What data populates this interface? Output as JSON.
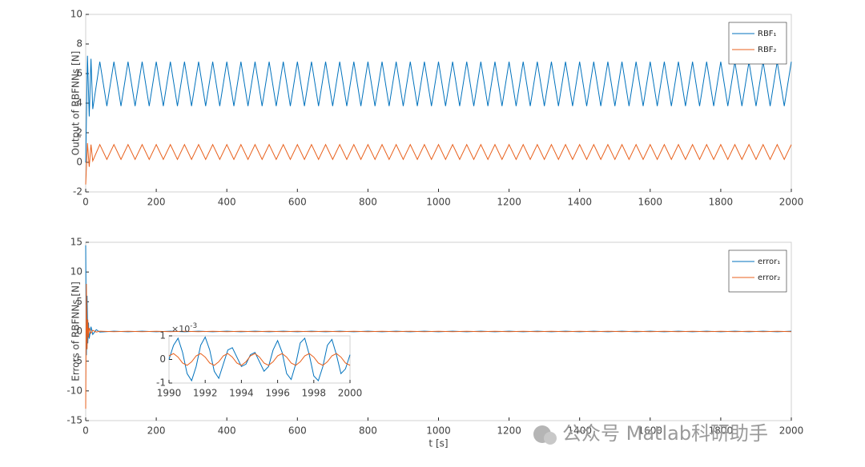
{
  "chart_data": [
    {
      "type": "line",
      "ylabel": "Output of RBFNNs [N]",
      "xlim": [
        0,
        2000
      ],
      "xticks": [
        0,
        200,
        400,
        600,
        800,
        1000,
        1200,
        1400,
        1600,
        1800,
        2000
      ],
      "ylim": [
        -2,
        10
      ],
      "yticks": [
        -2,
        0,
        2,
        4,
        6,
        8,
        10
      ],
      "grid": false,
      "legend": "upper right",
      "x": [
        0,
        5,
        10,
        15,
        20,
        40,
        60,
        80,
        100,
        120,
        140,
        160,
        180,
        200,
        220,
        240,
        260,
        280,
        300,
        320,
        340,
        360,
        380,
        400,
        420,
        440,
        460,
        480,
        500,
        520,
        540,
        560,
        580,
        600,
        620,
        640,
        660,
        680,
        700,
        720,
        740,
        760,
        780,
        800,
        820,
        840,
        860,
        880,
        900,
        920,
        940,
        960,
        980,
        1000,
        1020,
        1040,
        1060,
        1080,
        1100,
        1120,
        1140,
        1160,
        1180,
        1200,
        1220,
        1240,
        1260,
        1280,
        1300,
        1320,
        1340,
        1360,
        1380,
        1400,
        1420,
        1440,
        1460,
        1480,
        1500,
        1520,
        1540,
        1560,
        1580,
        1600,
        1620,
        1640,
        1660,
        1680,
        1700,
        1720,
        1740,
        1760,
        1780,
        1800,
        1820,
        1840,
        1860,
        1880,
        1900,
        1920,
        1940,
        1960,
        1980,
        2000
      ],
      "series": [
        {
          "name": "RBF₁",
          "color": "#0072bd",
          "values": [
            0,
            7.2,
            3.1,
            7.0,
            3.6,
            6.8,
            3.8,
            6.8,
            3.8,
            6.8,
            3.8,
            6.8,
            3.8,
            6.8,
            3.8,
            6.8,
            3.8,
            6.8,
            3.8,
            6.8,
            3.8,
            6.8,
            3.8,
            6.8,
            3.8,
            6.8,
            3.8,
            6.8,
            3.8,
            6.8,
            3.8,
            6.8,
            3.8,
            6.8,
            3.8,
            6.8,
            3.8,
            6.8,
            3.8,
            6.8,
            3.8,
            6.8,
            3.8,
            6.8,
            3.8,
            6.8,
            3.8,
            6.8,
            3.8,
            6.8,
            3.8,
            6.8,
            3.8,
            6.8,
            3.8,
            6.8,
            3.8,
            6.8,
            3.8,
            6.8,
            3.8,
            6.8,
            3.8,
            6.8,
            3.8,
            6.8,
            3.8,
            6.8,
            3.8,
            6.8,
            3.8,
            6.8,
            3.8,
            6.8,
            3.8,
            6.8,
            3.8,
            6.8,
            3.8,
            6.8,
            3.8,
            6.8,
            3.8,
            6.8,
            3.8,
            6.8,
            3.8,
            6.8,
            3.8,
            6.8,
            3.8,
            6.8,
            3.8,
            6.8,
            3.8,
            6.8,
            3.8,
            6.8,
            3.8,
            6.8,
            3.8,
            6.8,
            3.8,
            6.8
          ]
        },
        {
          "name": "RBF₂",
          "color": "#e8601c",
          "values": [
            -1.5,
            1.3,
            -0.3,
            1.2,
            0.1,
            1.2,
            0.2,
            1.2,
            0.2,
            1.2,
            0.2,
            1.2,
            0.2,
            1.2,
            0.2,
            1.2,
            0.2,
            1.2,
            0.2,
            1.2,
            0.2,
            1.2,
            0.2,
            1.2,
            0.2,
            1.2,
            0.2,
            1.2,
            0.2,
            1.2,
            0.2,
            1.2,
            0.2,
            1.2,
            0.2,
            1.2,
            0.2,
            1.2,
            0.2,
            1.2,
            0.2,
            1.2,
            0.2,
            1.2,
            0.2,
            1.2,
            0.2,
            1.2,
            0.2,
            1.2,
            0.2,
            1.2,
            0.2,
            1.2,
            0.2,
            1.2,
            0.2,
            1.2,
            0.2,
            1.2,
            0.2,
            1.2,
            0.2,
            1.2,
            0.2,
            1.2,
            0.2,
            1.2,
            0.2,
            1.2,
            0.2,
            1.2,
            0.2,
            1.2,
            0.2,
            1.2,
            0.2,
            1.2,
            0.2,
            1.2,
            0.2,
            1.2,
            0.2,
            1.2,
            0.2,
            1.2,
            0.2,
            1.2,
            0.2,
            1.2,
            0.2,
            1.2,
            0.2,
            1.2,
            0.2,
            1.2,
            0.2,
            1.2,
            0.2,
            1.2,
            0.2,
            1.2,
            0.2,
            1.2
          ]
        }
      ]
    },
    {
      "type": "line",
      "ylabel": "Errors of RBFNNs [N]",
      "xlabel": "t [s]",
      "xlim": [
        0,
        2000
      ],
      "xticks": [
        0,
        200,
        400,
        600,
        800,
        1000,
        1200,
        1400,
        1600,
        1800,
        2000
      ],
      "ylim": [
        -15,
        15
      ],
      "yticks": [
        -15,
        -10,
        -5,
        0,
        5,
        10,
        15
      ],
      "grid": false,
      "legend": "upper right",
      "x": [
        0,
        2,
        4,
        6,
        8,
        10,
        15,
        20,
        30,
        40,
        80,
        120,
        160,
        200,
        240,
        280,
        320,
        360,
        400,
        440,
        480,
        520,
        560,
        600,
        640,
        680,
        720,
        760,
        800,
        840,
        880,
        920,
        960,
        1000,
        1040,
        1080,
        1120,
        1160,
        1200,
        1240,
        1280,
        1320,
        1360,
        1400,
        1440,
        1480,
        1520,
        1560,
        1600,
        1640,
        1680,
        1720,
        1760,
        1800,
        1840,
        1880,
        1920,
        1960,
        2000
      ],
      "series": [
        {
          "name": "error₁",
          "color": "#0072bd",
          "values": [
            14.5,
            -4,
            6,
            -2,
            1.5,
            -1.2,
            0.8,
            -0.5,
            0.3,
            -0.1,
            0.05,
            -0.05,
            0.05,
            -0.05,
            0.05,
            -0.05,
            0.05,
            -0.05,
            0.05,
            -0.05,
            0.05,
            -0.05,
            0.05,
            -0.05,
            0.05,
            -0.05,
            0.05,
            -0.05,
            0.05,
            -0.05,
            0.05,
            -0.05,
            0.05,
            -0.05,
            0.05,
            -0.05,
            0.05,
            -0.05,
            0.05,
            -0.05,
            0.05,
            -0.05,
            0.05,
            -0.05,
            0.05,
            -0.05,
            0.05,
            -0.05,
            0.05,
            -0.05,
            0.05,
            -0.05,
            0.05,
            -0.05,
            0.05,
            -0.05,
            0.05,
            -0.05,
            0.05
          ]
        },
        {
          "name": "error₂",
          "color": "#e8601c",
          "values": [
            -13,
            8,
            -3,
            2,
            -1,
            0.6,
            -0.3,
            0.2,
            -0.1,
            0.05,
            -0.04,
            0.04,
            -0.04,
            0.04,
            -0.04,
            0.04,
            -0.04,
            0.04,
            -0.04,
            0.04,
            -0.04,
            0.04,
            -0.04,
            0.04,
            -0.04,
            0.04,
            -0.04,
            0.04,
            -0.04,
            0.04,
            -0.04,
            0.04,
            -0.04,
            0.04,
            -0.04,
            0.04,
            -0.04,
            0.04,
            -0.04,
            0.04,
            -0.04,
            0.04,
            -0.04,
            0.04,
            -0.04,
            0.04,
            -0.04,
            0.04,
            -0.04,
            0.04,
            -0.04,
            0.04,
            -0.04,
            0.04,
            -0.04,
            0.04,
            -0.04,
            0.04,
            -0.04
          ]
        }
      ]
    },
    {
      "type": "line",
      "yscale_label": "×10",
      "yscale_exponent": "-3",
      "xlim": [
        1990,
        2000
      ],
      "xticks": [
        1990,
        1992,
        1994,
        1996,
        1998,
        2000
      ],
      "ylim": [
        -1,
        1
      ],
      "yticks": [
        -1,
        0,
        1
      ],
      "grid": false,
      "x": [
        1990,
        1990.25,
        1990.5,
        1990.75,
        1991,
        1991.25,
        1991.5,
        1991.75,
        1992,
        1992.25,
        1992.5,
        1992.75,
        1993,
        1993.25,
        1993.5,
        1993.75,
        1994,
        1994.25,
        1994.5,
        1994.75,
        1995,
        1995.25,
        1995.5,
        1995.75,
        1996,
        1996.25,
        1996.5,
        1996.75,
        1997,
        1997.25,
        1997.5,
        1997.75,
        1998,
        1998.25,
        1998.5,
        1998.75,
        1999,
        1999.25,
        1999.5,
        1999.75,
        2000
      ],
      "series": [
        {
          "color": "#0072bd",
          "values": [
            0,
            0.6,
            0.9,
            0.3,
            -0.6,
            -0.9,
            -0.3,
            0.6,
            0.95,
            0.4,
            -0.5,
            -0.8,
            -0.2,
            0.4,
            0.5,
            0.1,
            -0.3,
            -0.2,
            0.2,
            0.3,
            -0.1,
            -0.5,
            -0.3,
            0.4,
            0.8,
            0.3,
            -0.6,
            -0.85,
            -0.2,
            0.7,
            0.9,
            0.2,
            -0.7,
            -0.9,
            -0.3,
            0.6,
            0.85,
            0.2,
            -0.6,
            -0.4,
            0.2
          ]
        },
        {
          "color": "#e8601c",
          "values": [
            0.15,
            0.25,
            0.1,
            -0.15,
            -0.25,
            -0.1,
            0.15,
            0.25,
            0.1,
            -0.15,
            -0.25,
            -0.1,
            0.15,
            0.25,
            0.1,
            -0.15,
            -0.25,
            -0.1,
            0.15,
            0.25,
            0.1,
            -0.15,
            -0.25,
            -0.1,
            0.15,
            0.25,
            0.1,
            -0.15,
            -0.25,
            -0.1,
            0.15,
            0.25,
            0.1,
            -0.15,
            -0.25,
            -0.1,
            0.15,
            0.25,
            0.1,
            -0.15,
            -0.25
          ]
        }
      ]
    }
  ],
  "watermark": "公众号 Matlab科研助手"
}
